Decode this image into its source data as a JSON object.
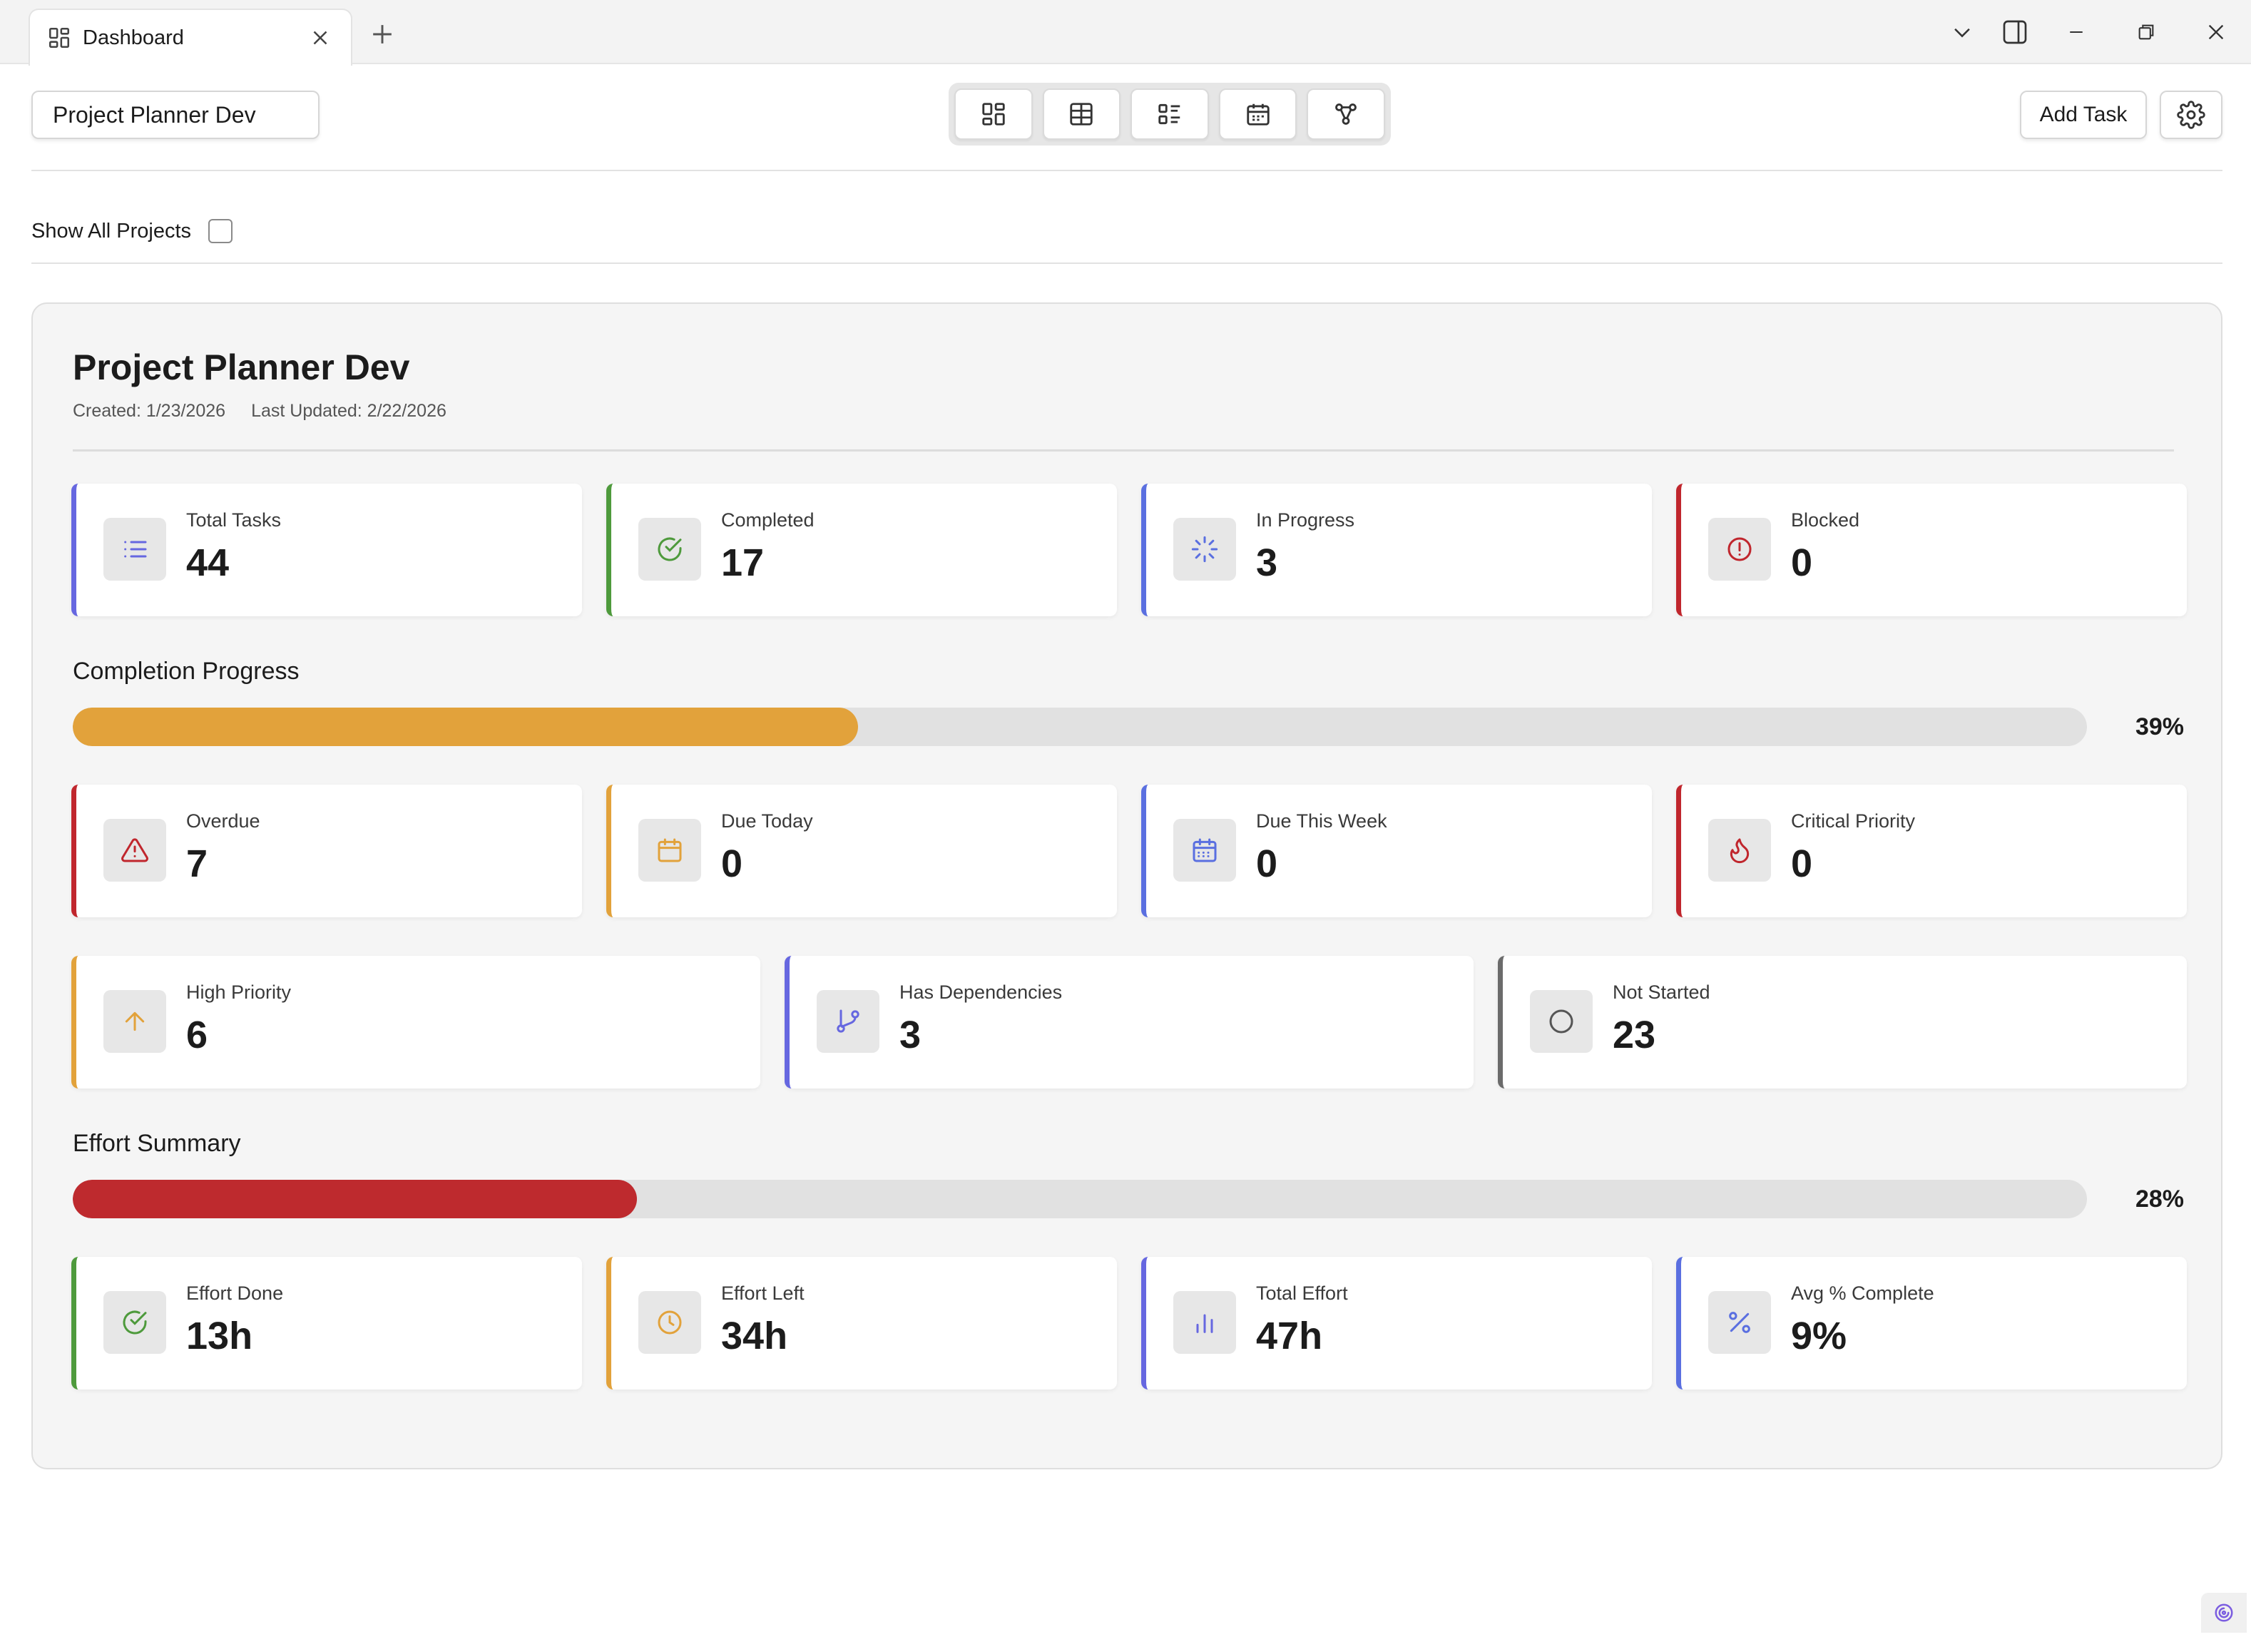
{
  "tab": {
    "label": "Dashboard",
    "icon": "dashboard-grid-icon"
  },
  "toolbar": {
    "project_selector": "Project Planner Dev",
    "views": [
      "dashboard-view-icon",
      "table-view-icon",
      "list-view-icon",
      "calendar-view-icon",
      "dependency-graph-icon"
    ],
    "add_task_label": "Add Task"
  },
  "filter": {
    "show_all_label": "Show All Projects",
    "show_all_checked": false
  },
  "project": {
    "title": "Project Planner Dev",
    "created": "Created: 1/23/2026",
    "updated": "Last Updated: 2/22/2026"
  },
  "stats_row1": [
    {
      "label": "Total Tasks",
      "value": "44",
      "icon": "list-icon",
      "color": "#6667e0"
    },
    {
      "label": "Completed",
      "value": "17",
      "icon": "check-circle-icon",
      "color": "#4e9a3c"
    },
    {
      "label": "In Progress",
      "value": "3",
      "icon": "loader-icon",
      "color": "#5a6fe0"
    },
    {
      "label": "Blocked",
      "value": "0",
      "icon": "alert-circle-icon",
      "color": "#c0262d"
    }
  ],
  "completion": {
    "title": "Completion Progress",
    "percent_label": "39%",
    "value": 0.39,
    "color": "#e2a23b"
  },
  "stats_row2": [
    {
      "label": "Overdue",
      "value": "7",
      "icon": "warning-triangle-icon",
      "color": "#c0262d"
    },
    {
      "label": "Due Today",
      "value": "0",
      "icon": "calendar-icon",
      "color": "#e2a23b"
    },
    {
      "label": "Due This Week",
      "value": "0",
      "icon": "calendar-week-icon",
      "color": "#5a6fe0"
    },
    {
      "label": "Critical Priority",
      "value": "0",
      "icon": "flame-icon",
      "color": "#c0262d"
    }
  ],
  "stats_row3": [
    {
      "label": "High Priority",
      "value": "6",
      "icon": "arrow-up-icon",
      "color": "#e2a23b"
    },
    {
      "label": "Has Dependencies",
      "value": "3",
      "icon": "git-branch-icon",
      "color": "#6667e0"
    },
    {
      "label": "Not Started",
      "value": "23",
      "icon": "circle-icon",
      "color": "#6b6b6b"
    }
  ],
  "effort": {
    "title": "Effort Summary",
    "percent_label": "28%",
    "value": 0.28,
    "color": "#be2a2e"
  },
  "stats_row4": [
    {
      "label": "Effort Done",
      "value": "13h",
      "icon": "check-circle-icon",
      "color": "#4e9a3c"
    },
    {
      "label": "Effort Left",
      "value": "34h",
      "icon": "clock-icon",
      "color": "#e2a23b"
    },
    {
      "label": "Total Effort",
      "value": "47h",
      "icon": "bar-chart-icon",
      "color": "#6667e0"
    },
    {
      "label": "Avg % Complete",
      "value": "9%",
      "icon": "percent-icon",
      "color": "#5a6fe0"
    }
  ]
}
